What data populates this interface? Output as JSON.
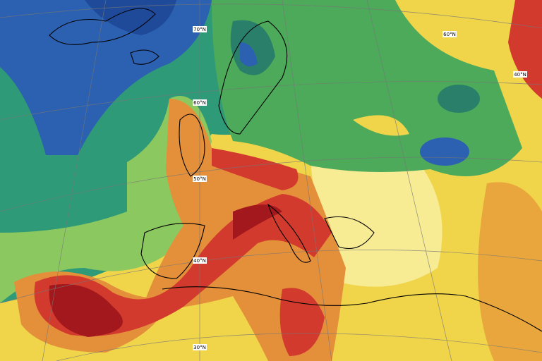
{
  "map": {
    "latitude_labels": [
      "70°N",
      "60°N",
      "50°N",
      "40°N",
      "30°N",
      "60°N",
      "40°N"
    ]
  }
}
